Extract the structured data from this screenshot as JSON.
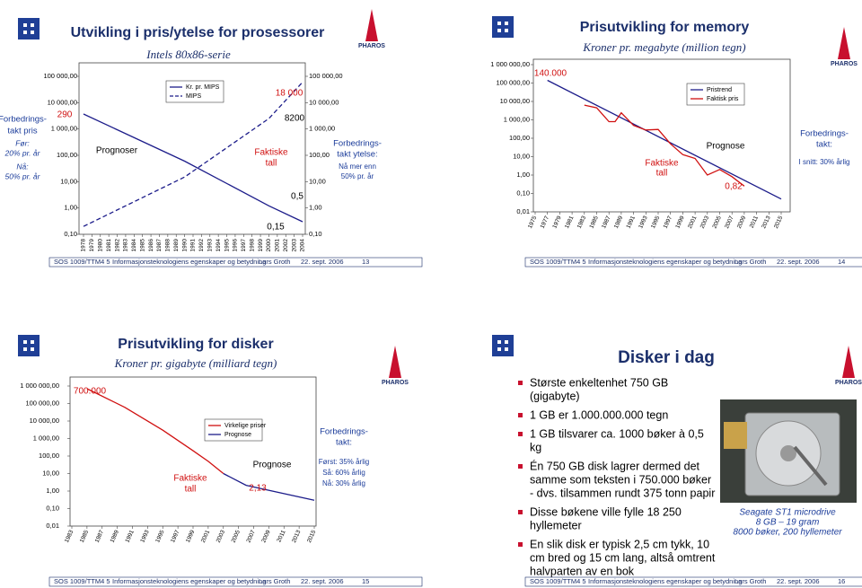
{
  "slides": [
    {
      "title": "Utvikling i pris/ytelse for prosessorer",
      "subtitle": "Intels 80x86-serie",
      "logo": "PHAROS",
      "left_notes": [
        "Forbedrings-",
        "takt pris",
        "Før:",
        "20% pr. år",
        "Nå:",
        "50% pr. år"
      ],
      "right_notes": [
        "Forbedrings-",
        "takt ytelse:",
        "Nå mer enn",
        "50% pr. år"
      ],
      "chart": {
        "type": "line",
        "log_scale": true,
        "xlim": [
          1978,
          2004
        ],
        "xticks": [
          1978,
          1979,
          1980,
          1981,
          1982,
          1983,
          1984,
          1985,
          1986,
          1987,
          1988,
          1989,
          1990,
          1991,
          1992,
          1993,
          1994,
          1995,
          1996,
          1997,
          1998,
          1999,
          2000,
          2001,
          2002,
          2003,
          2004
        ],
        "ylim": [
          0.1,
          100000
        ],
        "yticks": [
          {
            "value": 100000,
            "label": "100 000,00"
          },
          {
            "value": 10000,
            "label": "10 000,00"
          },
          {
            "value": 1000,
            "label": "1 000,00"
          },
          {
            "value": 100,
            "label": "100,00"
          },
          {
            "value": 10,
            "label": "10,00"
          },
          {
            "value": 1,
            "label": "1,00"
          },
          {
            "value": 0.1,
            "label": "0,10"
          }
        ],
        "y2lim": [
          0.1,
          100000
        ],
        "y2ticks": [
          {
            "value": 100000,
            "label": "100 000,00"
          },
          {
            "value": 10000,
            "label": "10 000,00"
          },
          {
            "value": 1000,
            "label": "1 000,00"
          },
          {
            "value": 100,
            "label": "100,00"
          },
          {
            "value": 10,
            "label": "10,00"
          },
          {
            "value": 1,
            "label": "1,00"
          },
          {
            "value": 0.1,
            "label": "0,10"
          }
        ],
        "series": [
          {
            "name": "Kr. pr. MIPS",
            "color": "#1c1c8a",
            "dashed": false,
            "x": [
              1978,
              1990,
              2000,
              2004
            ],
            "values": [
              3700,
              60,
              1.2,
              0.3
            ]
          },
          {
            "name": "MIPS",
            "color": "#1c1c8a",
            "dashed": true,
            "x": [
              1978,
              1990,
              2000,
              2004
            ],
            "values": [
              0.2,
              15,
              2500,
              60000
            ]
          }
        ],
        "annotations": [
          "290",
          "Prognoser",
          "18 000",
          "8200",
          "Faktiske",
          "tall",
          "0,5",
          "0,15"
        ]
      },
      "footer": [
        "SOS 1009/TTM4 5",
        "Informasjonsteknologiens egenskaper og betydning",
        "Lars Groth",
        "22. sept. 2006",
        "13"
      ]
    },
    {
      "title": "Prisutvikling for memory",
      "subtitle": "Kroner pr. megabyte (million tegn)",
      "logo": "PHAROS",
      "left_notes": [],
      "right_notes": [
        "Forbedrings-",
        "takt:",
        "I snitt: 30% årlig"
      ],
      "chart": {
        "type": "line",
        "log_scale": true,
        "xlim": [
          1975,
          2015
        ],
        "xticks": [
          1975,
          1977,
          1979,
          1981,
          1983,
          1985,
          1987,
          1989,
          1991,
          1993,
          1995,
          1997,
          1999,
          2001,
          2003,
          2005,
          2007,
          2009,
          2011,
          2013,
          2015
        ],
        "ylim": [
          0.01,
          1000000
        ],
        "yticks": [
          {
            "value": 1000000,
            "label": "1 000 000,00"
          },
          {
            "value": 100000,
            "label": "100 000,00"
          },
          {
            "value": 10000,
            "label": "10 000,00"
          },
          {
            "value": 1000,
            "label": "1 000,00"
          },
          {
            "value": 100,
            "label": "100,00"
          },
          {
            "value": 10,
            "label": "10,00"
          },
          {
            "value": 1,
            "label": "1,00"
          },
          {
            "value": 0.1,
            "label": "0,10"
          },
          {
            "value": 0.01,
            "label": "0,01"
          }
        ],
        "series": [
          {
            "name": "Pristrend",
            "color": "#1c1c8a",
            "dashed": false,
            "x": [
              1977,
              2015
            ],
            "values": [
              140000,
              0.05
            ]
          },
          {
            "name": "Faktisk pris",
            "color": "#d01010",
            "dashed": false,
            "x": [
              1983,
              1985,
              1987,
              1988,
              1989,
              1991,
              1993,
              1995,
              1997,
              1999,
              2001,
              2003,
              2005,
              2007,
              2009
            ],
            "values": [
              6300,
              4500,
              800,
              800,
              2400,
              500,
              280,
              300,
              50,
              13,
              8,
              1,
              2,
              0.82,
              0.25
            ]
          }
        ],
        "annotations": [
          "140.000",
          "Faktiske",
          "tall",
          "Prognose",
          "0,82"
        ]
      },
      "footer": [
        "SOS 1009/TTM4 5",
        "Informasjonsteknologiens egenskaper og betydning",
        "Lars Groth",
        "22. sept. 2006",
        "14"
      ]
    },
    {
      "title": "Prisutvikling for disker",
      "subtitle": "Kroner pr. gigabyte (milliard tegn)",
      "logo": "PHAROS",
      "left_notes": [],
      "right_notes": [
        "Forbedrings-",
        "takt:",
        "Først: 35% årlig",
        "Så: 60% årlig",
        "Nå: 30% årlig"
      ],
      "chart": {
        "type": "line",
        "log_scale": true,
        "xlim": [
          1983,
          2015
        ],
        "xticks": [
          1983,
          1985,
          1987,
          1989,
          1991,
          1993,
          1995,
          1997,
          1999,
          2001,
          2003,
          2005,
          2007,
          2009,
          2011,
          2013,
          2015
        ],
        "ylim": [
          0.01,
          1000000
        ],
        "yticks": [
          {
            "value": 1000000,
            "label": "1 000 000,00"
          },
          {
            "value": 100000,
            "label": "100 000,00"
          },
          {
            "value": 10000,
            "label": "10 000,00"
          },
          {
            "value": 1000,
            "label": "1 000,00"
          },
          {
            "value": 100,
            "label": "100,00"
          },
          {
            "value": 10,
            "label": "10,00"
          },
          {
            "value": 1,
            "label": "1,00"
          },
          {
            "value": 0.1,
            "label": "0,10"
          },
          {
            "value": 0.01,
            "label": "0,01"
          }
        ],
        "series": [
          {
            "name": "Virkelige priser",
            "color": "#d01010",
            "dashed": false,
            "x": [
              1985,
              1990,
              1995,
              1999,
              2001,
              2003
            ],
            "values": [
              700000,
              60000,
              3000,
              200,
              50,
              10
            ]
          },
          {
            "name": "Prognose",
            "color": "#1c1c8a",
            "dashed": false,
            "x": [
              2003,
              2006,
              2015
            ],
            "values": [
              10,
              2.13,
              0.3
            ]
          }
        ],
        "annotations": [
          "700.000",
          "Faktiske",
          "tall",
          "Prognose",
          "2,13"
        ]
      },
      "footer": [
        "SOS 1009/TTM4 5",
        "Informasjonsteknologiens egenskaper og betydning",
        "Lars Groth",
        "22. sept. 2006",
        "15"
      ]
    },
    {
      "title": "Disker i dag",
      "logo": "PHAROS",
      "bullets": [
        [
          "Største enkeltenhet 750 GB",
          "(gigabyte)"
        ],
        [
          "1 GB er 1.000.000.000 tegn"
        ],
        [
          "1 GB tilsvarer ca. 1000 bøker à 0,5",
          "kg"
        ],
        [
          "Én 750 GB disk lagrer dermed det",
          "samme som teksten i 750.000 bøker",
          "- dvs. tilsammen rundt 375 tonn papir"
        ],
        [
          "Disse bøkene ville fylle 18 250",
          "hyllemeter"
        ],
        [
          "En slik disk er typisk 2,5 cm tykk, 10",
          "cm bred og 15 cm lang, altså omtrent",
          "halvparten av en bok"
        ]
      ],
      "caption": [
        "Seagate ST1 microdrive",
        "8 GB – 19 gram",
        "8000 bøker, 200 hyllemeter"
      ],
      "footer": [
        "SOS 1009/TTM4 5",
        "Informasjonsteknologiens egenskaper og betydning",
        "Lars Groth",
        "22. sept. 2006",
        "16"
      ]
    }
  ]
}
